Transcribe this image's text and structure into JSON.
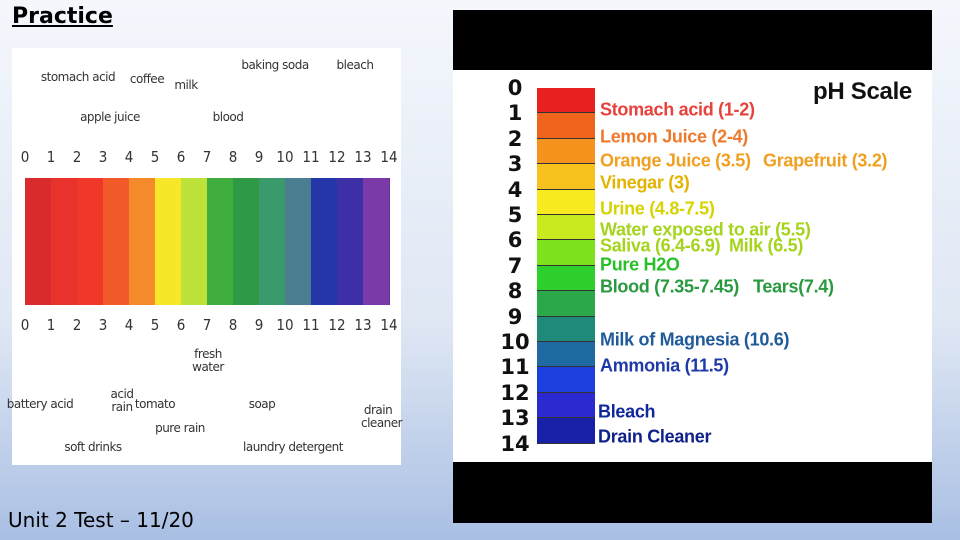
{
  "slide": {
    "title": "Practice",
    "footer": "Unit 2 Test – 11/20"
  },
  "left_figure": {
    "scale_top": [
      0,
      1,
      2,
      3,
      4,
      5,
      6,
      7,
      8,
      9,
      10,
      11,
      12,
      13,
      14
    ],
    "scale_bottom": [
      0,
      1,
      2,
      3,
      4,
      5,
      6,
      7,
      8,
      9,
      10,
      11,
      12,
      13,
      14
    ],
    "top_labels": [
      "stomach acid",
      "apple juice",
      "coffee",
      "milk",
      "blood",
      "baking soda",
      "bleach"
    ],
    "bottom_labels": [
      "battery acid",
      "soft drinks",
      "acid rain",
      "tomato",
      "pure rain",
      "fresh water",
      "soap",
      "laundry detergent",
      "drain cleaner"
    ]
  },
  "right_figure": {
    "title": "pH Scale",
    "scale": [
      0,
      1,
      2,
      3,
      4,
      5,
      6,
      7,
      8,
      9,
      10,
      11,
      12,
      13,
      14
    ],
    "labels": [
      "Stomach acid (1-2)",
      "Lemon Juice (2-4)",
      "Orange Juice (3.5)",
      "Grapefruit (3.2)",
      "Vinegar (3)",
      "Urine (4.8-7.5)",
      "Water exposed to air (5.5)",
      "Saliva (6.4-6.9)",
      "Milk (6.5)",
      "Pure H2O",
      "Blood (7.35-7.45)",
      "Tears(7.4)",
      "Milk of Magnesia (10.6)",
      "Ammonia (11.5)",
      "Bleach",
      "Drain Cleaner"
    ]
  }
}
